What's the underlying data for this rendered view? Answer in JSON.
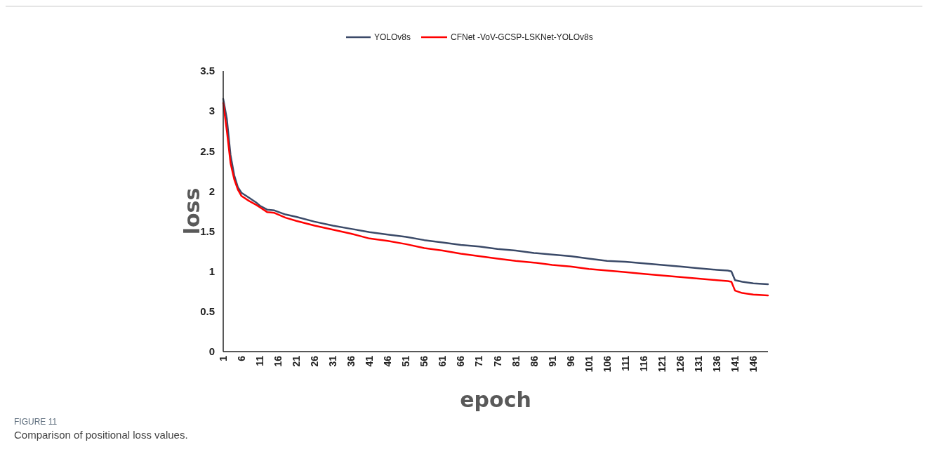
{
  "chart_data": {
    "type": "line",
    "xlabel": "epoch",
    "ylabel": "loss",
    "x": [
      1,
      2,
      3,
      4,
      5,
      6,
      8,
      10,
      11,
      13,
      15,
      18,
      21,
      26,
      31,
      36,
      41,
      46,
      51,
      56,
      61,
      66,
      71,
      76,
      81,
      86,
      91,
      96,
      101,
      106,
      111,
      116,
      121,
      126,
      131,
      136,
      139,
      140,
      141,
      143,
      146,
      150
    ],
    "xlim": [
      1,
      150
    ],
    "xticks": [
      1,
      6,
      11,
      16,
      21,
      26,
      31,
      36,
      41,
      46,
      51,
      56,
      61,
      66,
      71,
      76,
      81,
      86,
      91,
      96,
      101,
      106,
      111,
      116,
      121,
      126,
      131,
      136,
      141,
      146
    ],
    "ylim": [
      0,
      3.5
    ],
    "yticks": [
      0,
      0.5,
      1,
      1.5,
      2,
      2.5,
      3,
      3.5
    ],
    "series": [
      {
        "name": "YOLOv8s",
        "color": "#3b4a68",
        "values": [
          3.15,
          2.9,
          2.45,
          2.2,
          2.05,
          1.98,
          1.92,
          1.86,
          1.82,
          1.77,
          1.76,
          1.71,
          1.68,
          1.62,
          1.57,
          1.53,
          1.49,
          1.46,
          1.43,
          1.39,
          1.36,
          1.33,
          1.31,
          1.28,
          1.26,
          1.23,
          1.21,
          1.19,
          1.16,
          1.13,
          1.12,
          1.1,
          1.08,
          1.06,
          1.04,
          1.02,
          1.01,
          1.0,
          0.89,
          0.87,
          0.85,
          0.84
        ]
      },
      {
        "name": "CFNet -VoV-GCSP-LSKNet-YOLOv8s",
        "color": "#ff0000",
        "values": [
          3.1,
          2.75,
          2.35,
          2.15,
          2.02,
          1.94,
          1.88,
          1.83,
          1.8,
          1.74,
          1.73,
          1.67,
          1.63,
          1.57,
          1.52,
          1.47,
          1.41,
          1.38,
          1.34,
          1.29,
          1.26,
          1.22,
          1.19,
          1.16,
          1.13,
          1.11,
          1.08,
          1.06,
          1.03,
          1.01,
          0.99,
          0.97,
          0.95,
          0.93,
          0.91,
          0.89,
          0.88,
          0.87,
          0.76,
          0.73,
          0.71,
          0.7
        ]
      }
    ],
    "legend": "top",
    "grid": false,
    "marker": "none",
    "line_style": "solid",
    "annotations": [
      "FIGURE 11",
      "Comparison of positional loss values."
    ]
  }
}
